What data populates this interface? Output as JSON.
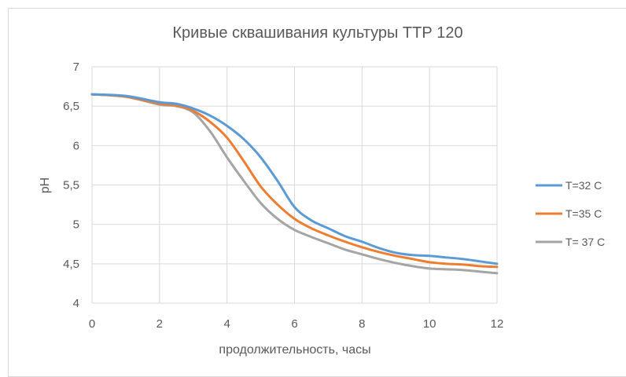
{
  "chart_data": {
    "type": "line",
    "title": "Кривые сквашивания культуры ТТР 120",
    "xlabel": "продолжительность, часы",
    "ylabel": "pH",
    "xlim": [
      0,
      12
    ],
    "ylim": [
      4,
      7
    ],
    "x_ticks": [
      "0",
      "2",
      "4",
      "6",
      "8",
      "10",
      "12"
    ],
    "y_ticks": [
      "4",
      "4,5",
      "5",
      "5,5",
      "6",
      "6,5",
      "7"
    ],
    "grid": true,
    "legend_position": "right",
    "series": [
      {
        "name": "T=32 C",
        "color": "#5b9bd5",
        "x": [
          0,
          1,
          2,
          2.5,
          3,
          3.5,
          4,
          4.5,
          5,
          5.5,
          6,
          6.5,
          7,
          7.5,
          8,
          8.5,
          9,
          9.5,
          10,
          10.5,
          11,
          11.5,
          12
        ],
        "y": [
          6.65,
          6.63,
          6.55,
          6.53,
          6.47,
          6.38,
          6.25,
          6.08,
          5.85,
          5.55,
          5.22,
          5.05,
          4.95,
          4.85,
          4.78,
          4.7,
          4.64,
          4.61,
          4.6,
          4.58,
          4.56,
          4.53,
          4.5
        ]
      },
      {
        "name": "T=35 C",
        "color": "#ed7d31",
        "x": [
          0,
          1,
          2,
          2.5,
          3,
          3.5,
          4,
          4.5,
          5,
          5.5,
          6,
          6.5,
          7,
          7.5,
          8,
          8.5,
          9,
          9.5,
          10,
          10.5,
          11,
          11.5,
          12
        ],
        "y": [
          6.65,
          6.62,
          6.53,
          6.51,
          6.44,
          6.3,
          6.1,
          5.8,
          5.48,
          5.25,
          5.07,
          4.95,
          4.86,
          4.78,
          4.71,
          4.65,
          4.6,
          4.56,
          4.52,
          4.5,
          4.49,
          4.47,
          4.46
        ]
      },
      {
        "name": "T= 37 C",
        "color": "#a5a5a5",
        "x": [
          0,
          1,
          2,
          2.5,
          3,
          3.5,
          4,
          4.5,
          5,
          5.5,
          6,
          6.5,
          7,
          7.5,
          8,
          8.5,
          9,
          9.5,
          10,
          10.5,
          11,
          11.5,
          12
        ],
        "y": [
          6.65,
          6.62,
          6.52,
          6.5,
          6.42,
          6.18,
          5.85,
          5.55,
          5.27,
          5.07,
          4.93,
          4.84,
          4.76,
          4.68,
          4.62,
          4.56,
          4.51,
          4.47,
          4.44,
          4.43,
          4.42,
          4.4,
          4.38
        ]
      }
    ]
  }
}
